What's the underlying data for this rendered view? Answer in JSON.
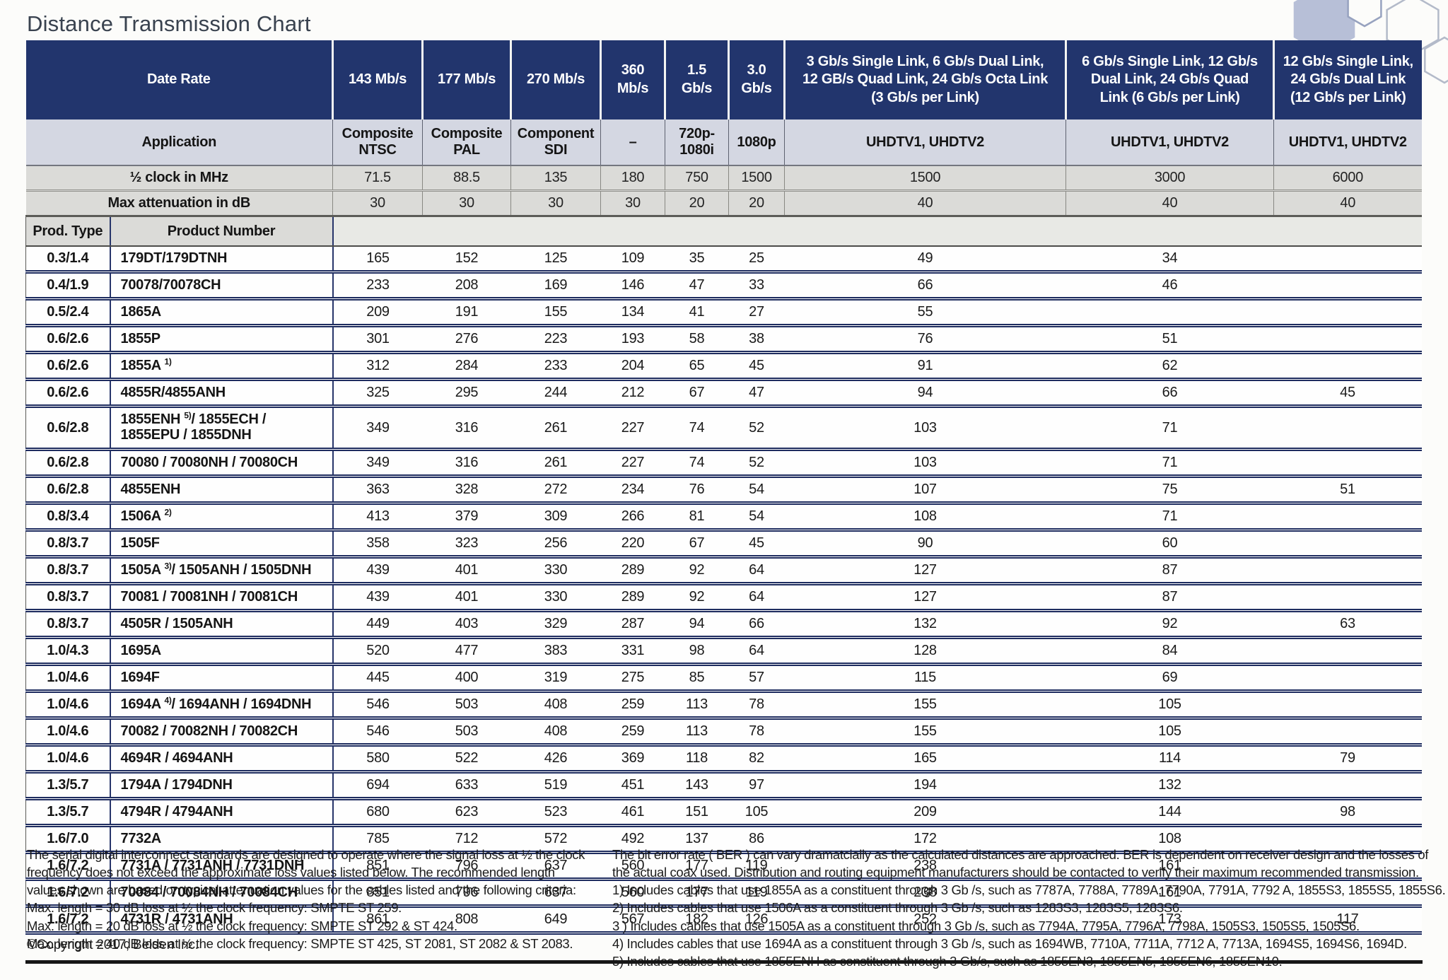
{
  "page": {
    "title": "Distance Transmission Chart"
  },
  "table": {
    "corner": {
      "date_rate": "Date Rate",
      "application": "Application",
      "half_clock": "½ clock in MHz",
      "max_atten": "Max attenuation in dB",
      "prod_type": "Prod. Type",
      "product_number": "Product Number"
    },
    "columns": [
      {
        "rate": "143 Mb/s",
        "app": "Composite\nNTSC",
        "clock": "71.5",
        "atten": "30"
      },
      {
        "rate": "177 Mb/s",
        "app": "Composite\nPAL",
        "clock": "88.5",
        "atten": "30"
      },
      {
        "rate": "270 Mb/s",
        "app": "Component\nSDI",
        "clock": "135",
        "atten": "30"
      },
      {
        "rate": "360\nMb/s",
        "app": "–",
        "clock": "180",
        "atten": "30"
      },
      {
        "rate": "1.5\nGb/s",
        "app": "720p-\n1080i",
        "clock": "750",
        "atten": "20"
      },
      {
        "rate": "3.0\nGb/s",
        "app": "1080p",
        "clock": "1500",
        "atten": "20"
      },
      {
        "rate": "3 Gb/s Single Link, 6 Gb/s Dual Link,\n12 GB/s Quad Link, 24 Gb/s Octa Link\n(3 Gb/s per Link)",
        "app": "UHDTV1, UHDTV2",
        "clock": "1500",
        "atten": "40"
      },
      {
        "rate": "6 Gb/s Single Link, 12 Gb/s\nDual Link, 24 Gb/s Quad\nLink (6 Gb/s per Link)",
        "app": "UHDTV1, UHDTV2",
        "clock": "3000",
        "atten": "40"
      },
      {
        "rate": "12 Gb/s Single Link,\n24 Gb/s Dual Link\n(12 Gb/s per Link)",
        "app": "UHDTV1, UHDTV2",
        "clock": "6000",
        "atten": "40"
      }
    ],
    "rows": [
      {
        "type": "0.3/1.4",
        "product": "179DT/179DTNH",
        "values": [
          "165",
          "152",
          "125",
          "109",
          "35",
          "25",
          "49",
          "34",
          ""
        ]
      },
      {
        "type": "0.4/1.9",
        "product": "70078/70078CH",
        "values": [
          "233",
          "208",
          "169",
          "146",
          "47",
          "33",
          "66",
          "46",
          ""
        ]
      },
      {
        "type": "0.5/2.4",
        "product": "1865A",
        "values": [
          "209",
          "191",
          "155",
          "134",
          "41",
          "27",
          "55",
          "",
          ""
        ]
      },
      {
        "type": "0.6/2.6",
        "product": "1855P",
        "values": [
          "301",
          "276",
          "223",
          "193",
          "58",
          "38",
          "76",
          "51",
          ""
        ]
      },
      {
        "type": "0.6/2.6",
        "product": "1855A ^1)^",
        "values": [
          "312",
          "284",
          "233",
          "204",
          "65",
          "45",
          "91",
          "62",
          ""
        ]
      },
      {
        "type": "0.6/2.6",
        "product": "4855R/4855ANH",
        "values": [
          "325",
          "295",
          "244",
          "212",
          "67",
          "47",
          "94",
          "66",
          "45"
        ]
      },
      {
        "type": "0.6/2.8",
        "product": "1855ENH ^5)^/ 1855ECH /\n1855EPU / 1855DNH",
        "values": [
          "349",
          "316",
          "261",
          "227",
          "74",
          "52",
          "103",
          "71",
          ""
        ],
        "tall": true
      },
      {
        "type": "0.6/2.8",
        "product": "70080 / 70080NH / 70080CH",
        "values": [
          "349",
          "316",
          "261",
          "227",
          "74",
          "52",
          "103",
          "71",
          ""
        ]
      },
      {
        "type": "0.6/2.8",
        "product": "4855ENH",
        "values": [
          "363",
          "328",
          "272",
          "234",
          "76",
          "54",
          "107",
          "75",
          "51"
        ]
      },
      {
        "type": "0.8/3.4",
        "product": "1506A ^2)^",
        "values": [
          "413",
          "379",
          "309",
          "266",
          "81",
          "54",
          "108",
          "71",
          ""
        ]
      },
      {
        "type": "0.8/3.7",
        "product": "1505F",
        "values": [
          "358",
          "323",
          "256",
          "220",
          "67",
          "45",
          "90",
          "60",
          ""
        ]
      },
      {
        "type": "0.8/3.7",
        "product": "1505A ^3)^/ 1505ANH / 1505DNH",
        "values": [
          "439",
          "401",
          "330",
          "289",
          "92",
          "64",
          "127",
          "87",
          ""
        ]
      },
      {
        "type": "0.8/3.7",
        "product": "70081 / 70081NH / 70081CH",
        "values": [
          "439",
          "401",
          "330",
          "289",
          "92",
          "64",
          "127",
          "87",
          ""
        ]
      },
      {
        "type": "0.8/3.7",
        "product": "4505R / 1505ANH",
        "values": [
          "449",
          "403",
          "329",
          "287",
          "94",
          "66",
          "132",
          "92",
          "63"
        ]
      },
      {
        "type": "1.0/4.3",
        "product": "1695A",
        "values": [
          "520",
          "477",
          "383",
          "331",
          "98",
          "64",
          "128",
          "84",
          ""
        ]
      },
      {
        "type": "1.0/4.6",
        "product": "1694F",
        "values": [
          "445",
          "400",
          "319",
          "275",
          "85",
          "57",
          "115",
          "69",
          ""
        ]
      },
      {
        "type": "1.0/4.6",
        "product": "1694A ^4)^/ 1694ANH / 1694DNH",
        "values": [
          "546",
          "503",
          "408",
          "259",
          "113",
          "78",
          "155",
          "105",
          ""
        ]
      },
      {
        "type": "1.0/4.6",
        "product": "70082 / 70082NH / 70082CH",
        "values": [
          "546",
          "503",
          "408",
          "259",
          "113",
          "78",
          "155",
          "105",
          ""
        ]
      },
      {
        "type": "1.0/4.6",
        "product": "4694R / 4694ANH",
        "values": [
          "580",
          "522",
          "426",
          "369",
          "118",
          "82",
          "165",
          "114",
          "79"
        ]
      },
      {
        "type": "1.3/5.7",
        "product": "1794A / 1794DNH",
        "values": [
          "694",
          "633",
          "519",
          "451",
          "143",
          "97",
          "194",
          "132",
          ""
        ]
      },
      {
        "type": "1.3/5.7",
        "product": "4794R / 4794ANH",
        "values": [
          "680",
          "623",
          "523",
          "461",
          "151",
          "105",
          "209",
          "144",
          "98"
        ]
      },
      {
        "type": "1.6/7.0",
        "product": "7732A",
        "values": [
          "785",
          "712",
          "572",
          "492",
          "137",
          "86",
          "172",
          "108",
          ""
        ]
      },
      {
        "type": "1.6/7.2",
        "product": "7731A / 7731ANH / 7731DNH",
        "values": [
          "851",
          "796",
          "637",
          "560",
          "177",
          "119",
          "238",
          "161",
          ""
        ]
      },
      {
        "type": "1.6/7.2",
        "product": "70084 / 70084NH / 70084CH",
        "values": [
          "851",
          "796",
          "637",
          "560",
          "177",
          "119",
          "238",
          "161",
          ""
        ]
      },
      {
        "type": "1.6/7.2",
        "product": "4731R / 4731ANH",
        "values": [
          "861",
          "808",
          "649",
          "567",
          "182",
          "126",
          "252",
          "173",
          "117"
        ]
      }
    ]
  },
  "footnotes": {
    "left": [
      "The serial digital interconnect standards are designed to operate where the signal loss at ½ the clock",
      "frequency does not exceed the approximate loss values listed below. The recommended length",
      "values shown are based on typical attenuation values for the cables listed and the following criteria:",
      "Max. length = 30 dB loss at ½ the clock frequency: SMPTE ST 259.",
      "Max. length = 20 dB loss at ½ the clock frequency: SMPTE ST 292 & ST 424.",
      "Max. length = 40 dB loss at ½ the clock frequency: SMPTE ST 425, ST 2081, ST 2082 & ST 2083."
    ],
    "right": [
      "The bit error rate ( BER ) can vary dramatcially as the calculated distances are approached. BER is dependent on receiver design and the losses of",
      "the actual coax used. Distribution and routing equipment manufacturers should be contacted to verify their maximum recommended transmission.",
      "1) Includes cables that use 1855A as a constituent through 3 Gb /s, such as 7787A, 7788A, 7789A, 7790A, 7791A, 7792 A, 1855S3, 1855S5, 1855S6.",
      "2) Includes cables that use 1506A as a constituent through 3 Gb /s, such as 1283S3, 1283S5, 1283S6.",
      "3 ) Includes cables that use 1505A as a constituent through 3 Gb /s, such as 7794A, 7795A, 7796A, 7798A, 1505S3, 1505S5, 1505S6.",
      "4) Includes cables that use 1694A as a constituent through 3 Gb /s, such as 1694WB, 7710A, 7711A, 7712 A, 7713A, 1694S5, 1694S6, 1694D.",
      "5) Includes cables that use 1855ENH as constituent through 3 Gb/s, such as 1855EN3, 1855EN5, 1855EN6, 1855EN10."
    ],
    "copyright": "©Copyright 2017, Belden Inc."
  },
  "colors": {
    "header_navy": "#22356d",
    "application_row": "#d4d7e2",
    "spec_row_gray": "#dbdbd8",
    "row_separator_navy": "#1e2c5f"
  },
  "icons": {
    "decoration": "hexagon-decoration"
  }
}
